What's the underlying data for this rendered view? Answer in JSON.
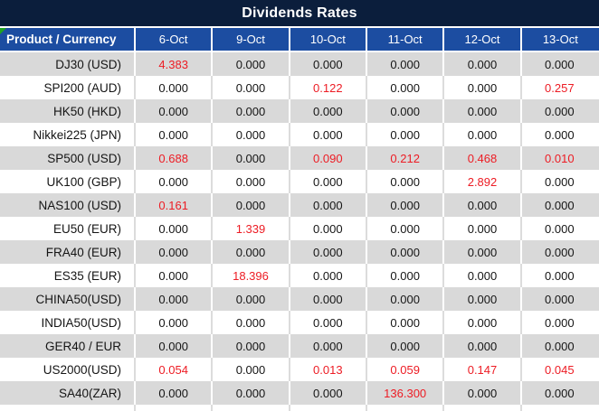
{
  "title": "Dividends Rates",
  "colors": {
    "title_bg": "#0B1E3C",
    "header_bg": "#1C4DA1",
    "row_alt": "#D9D9D9",
    "highlight": "#ED1C24",
    "flag_green": "#1FA321"
  },
  "table": {
    "product_header": "Product / Currency",
    "date_headers": [
      "6-Oct",
      "9-Oct",
      "10-Oct",
      "11-Oct",
      "12-Oct",
      "13-Oct"
    ],
    "rows": [
      {
        "product": "DJ30 (USD)",
        "values": [
          "4.383",
          "0.000",
          "0.000",
          "0.000",
          "0.000",
          "0.000"
        ],
        "red": [
          0
        ]
      },
      {
        "product": "SPI200 (AUD)",
        "values": [
          "0.000",
          "0.000",
          "0.122",
          "0.000",
          "0.000",
          "0.257"
        ],
        "red": [
          2,
          5
        ]
      },
      {
        "product": "HK50 (HKD)",
        "values": [
          "0.000",
          "0.000",
          "0.000",
          "0.000",
          "0.000",
          "0.000"
        ],
        "red": []
      },
      {
        "product": "Nikkei225 (JPN)",
        "values": [
          "0.000",
          "0.000",
          "0.000",
          "0.000",
          "0.000",
          "0.000"
        ],
        "red": []
      },
      {
        "product": "SP500 (USD)",
        "values": [
          "0.688",
          "0.000",
          "0.090",
          "0.212",
          "0.468",
          "0.010"
        ],
        "red": [
          0,
          2,
          3,
          4,
          5
        ]
      },
      {
        "product": "UK100 (GBP)",
        "values": [
          "0.000",
          "0.000",
          "0.000",
          "0.000",
          "2.892",
          "0.000"
        ],
        "red": [
          4
        ]
      },
      {
        "product": "NAS100 (USD)",
        "values": [
          "0.161",
          "0.000",
          "0.000",
          "0.000",
          "0.000",
          "0.000"
        ],
        "red": [
          0
        ]
      },
      {
        "product": "EU50 (EUR)",
        "values": [
          "0.000",
          "1.339",
          "0.000",
          "0.000",
          "0.000",
          "0.000"
        ],
        "red": [
          1
        ]
      },
      {
        "product": "FRA40 (EUR)",
        "values": [
          "0.000",
          "0.000",
          "0.000",
          "0.000",
          "0.000",
          "0.000"
        ],
        "red": []
      },
      {
        "product": "ES35 (EUR)",
        "values": [
          "0.000",
          "18.396",
          "0.000",
          "0.000",
          "0.000",
          "0.000"
        ],
        "red": [
          1
        ]
      },
      {
        "product": "CHINA50(USD)",
        "values": [
          "0.000",
          "0.000",
          "0.000",
          "0.000",
          "0.000",
          "0.000"
        ],
        "red": []
      },
      {
        "product": "INDIA50(USD)",
        "values": [
          "0.000",
          "0.000",
          "0.000",
          "0.000",
          "0.000",
          "0.000"
        ],
        "red": []
      },
      {
        "product": "GER40 / EUR",
        "values": [
          "0.000",
          "0.000",
          "0.000",
          "0.000",
          "0.000",
          "0.000"
        ],
        "red": []
      },
      {
        "product": "US2000(USD)",
        "values": [
          "0.054",
          "0.000",
          "0.013",
          "0.059",
          "0.147",
          "0.045"
        ],
        "red": [
          0,
          2,
          3,
          4,
          5
        ]
      },
      {
        "product": "SA40(ZAR)",
        "values": [
          "0.000",
          "0.000",
          "0.000",
          "136.300",
          "0.000",
          "0.000"
        ],
        "red": [
          3
        ]
      }
    ]
  }
}
